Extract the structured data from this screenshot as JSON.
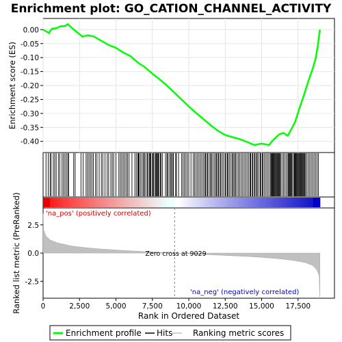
{
  "chart_data": {
    "type": "line",
    "title": "Enrichment plot: GO_CATION_CHANNEL_ACTIVITY",
    "panels": {
      "enrichment": {
        "ylabel": "Enrichment score (ES)",
        "ylim": [
          -0.44,
          0.04
        ],
        "yticks": [
          "0.00",
          "-0.05",
          "-0.10",
          "-0.15",
          "-0.20",
          "-0.25",
          "-0.30",
          "-0.35",
          "-0.40"
        ],
        "ytick_values": [
          0.0,
          -0.05,
          -0.1,
          -0.15,
          -0.2,
          -0.25,
          -0.3,
          -0.35,
          -0.4
        ],
        "series_color": "#00ff00",
        "points": [
          [
            0,
            0.0
          ],
          [
            400,
            -0.012
          ],
          [
            600,
            0.003
          ],
          [
            900,
            0.005
          ],
          [
            1200,
            0.012
          ],
          [
            1500,
            0.013
          ],
          [
            1700,
            0.02
          ],
          [
            2000,
            0.005
          ],
          [
            2300,
            -0.008
          ],
          [
            2700,
            -0.025
          ],
          [
            3100,
            -0.02
          ],
          [
            3500,
            -0.025
          ],
          [
            4000,
            -0.04
          ],
          [
            4500,
            -0.055
          ],
          [
            5000,
            -0.065
          ],
          [
            5500,
            -0.082
          ],
          [
            6000,
            -0.095
          ],
          [
            6500,
            -0.118
          ],
          [
            7000,
            -0.135
          ],
          [
            7500,
            -0.158
          ],
          [
            8000,
            -0.178
          ],
          [
            8500,
            -0.2
          ],
          [
            9000,
            -0.225
          ],
          [
            9500,
            -0.25
          ],
          [
            10000,
            -0.275
          ],
          [
            10500,
            -0.298
          ],
          [
            11000,
            -0.32
          ],
          [
            11500,
            -0.342
          ],
          [
            12000,
            -0.362
          ],
          [
            12500,
            -0.377
          ],
          [
            13000,
            -0.385
          ],
          [
            13500,
            -0.392
          ],
          [
            14000,
            -0.402
          ],
          [
            14500,
            -0.413
          ],
          [
            15000,
            -0.408
          ],
          [
            15500,
            -0.413
          ],
          [
            15800,
            -0.395
          ],
          [
            16200,
            -0.375
          ],
          [
            16500,
            -0.37
          ],
          [
            16800,
            -0.38
          ],
          [
            17000,
            -0.36
          ],
          [
            17300,
            -0.33
          ],
          [
            17600,
            -0.28
          ],
          [
            17900,
            -0.235
          ],
          [
            18200,
            -0.185
          ],
          [
            18500,
            -0.14
          ],
          [
            18700,
            -0.105
          ],
          [
            18850,
            -0.06
          ],
          [
            18950,
            -0.02
          ],
          [
            19000,
            0.0
          ]
        ]
      },
      "metric": {
        "ylabel": "Ranked list metric (PreRanked)",
        "yticks": [
          "2.5",
          "0.0",
          "-2.5"
        ],
        "ytick_values": [
          2.5,
          0.0,
          -2.5
        ],
        "ylim": [
          -4.0,
          4.0
        ],
        "points": [
          [
            0,
            3.5
          ],
          [
            50,
            2.0
          ],
          [
            200,
            1.5
          ],
          [
            500,
            1.15
          ],
          [
            1000,
            0.9
          ],
          [
            2000,
            0.62
          ],
          [
            3000,
            0.47
          ],
          [
            4000,
            0.36
          ],
          [
            5000,
            0.27
          ],
          [
            6000,
            0.2
          ],
          [
            7000,
            0.13
          ],
          [
            8000,
            0.06
          ],
          [
            9029,
            0.0
          ],
          [
            10000,
            -0.06
          ],
          [
            11000,
            -0.12
          ],
          [
            12000,
            -0.18
          ],
          [
            13000,
            -0.24
          ],
          [
            14000,
            -0.3
          ],
          [
            15000,
            -0.38
          ],
          [
            16000,
            -0.48
          ],
          [
            17000,
            -0.62
          ],
          [
            17500,
            -0.72
          ],
          [
            18000,
            -0.85
          ],
          [
            18500,
            -1.1
          ],
          [
            18800,
            -1.5
          ],
          [
            18950,
            -2.0
          ],
          [
            19000,
            -4.0
          ]
        ],
        "zero_cross_label": "Zero cross at 9029",
        "pos_label": "'na_pos' (positively correlated)",
        "neg_label": "'na_neg' (negatively correlated)"
      },
      "x": {
        "xlabel": "Rank in Ordered Dataset",
        "xlim": [
          0,
          20000
        ],
        "xticks": [
          "0",
          "2,500",
          "5,000",
          "7,500",
          "10,000",
          "12,500",
          "15,000",
          "17,500"
        ],
        "xtick_values": [
          0,
          2500,
          5000,
          7500,
          10000,
          12500,
          15000,
          17500
        ],
        "zero_cross": 9029,
        "max_rank": 19000
      },
      "hits": [
        200,
        350,
        480,
        550,
        700,
        800,
        900,
        1050,
        1150,
        1300,
        1400,
        1500,
        1600,
        1700,
        1750,
        2100,
        2200,
        2600,
        2750,
        2950,
        3050,
        3150,
        3250,
        3350,
        3450,
        3600,
        3700,
        3850,
        4000,
        4100,
        4250,
        4400,
        4500,
        4650,
        4750,
        4850,
        5000,
        5200,
        5300,
        5400,
        5500,
        5600,
        5700,
        5800,
        5900,
        6100,
        6300,
        6400,
        6500,
        6550,
        6600,
        6700,
        6800,
        6900,
        6950,
        7050,
        7150,
        7200,
        7300,
        7350,
        7400,
        7500,
        7550,
        7600,
        7700,
        7750,
        7800,
        7850,
        7900,
        7950,
        8050,
        8100,
        8200,
        8400,
        8500,
        8550,
        8650,
        8750,
        8800,
        8900,
        8950,
        9100,
        9150,
        9300,
        9500,
        9600,
        9700,
        9800,
        9900,
        10000,
        10150,
        10300,
        10400,
        10500,
        10600,
        10700,
        10800,
        10900,
        11000,
        11100,
        11150,
        11250,
        11300,
        11400,
        11500,
        11550,
        11650,
        11750,
        11850,
        11900,
        12000,
        12050,
        12150,
        12200,
        12300,
        12400,
        12500,
        12550,
        12650,
        12700,
        12800,
        12900,
        13000,
        13050,
        13150,
        13200,
        13300,
        13400,
        13500,
        13600,
        13700,
        13800,
        13900,
        14000,
        14100,
        14200,
        14250,
        14350,
        14400,
        14500,
        14550,
        14650,
        14700,
        14800,
        14900,
        14950,
        15050,
        15100,
        15200,
        15300,
        15400,
        15500,
        15600,
        15650,
        15700,
        15750,
        15800,
        15850,
        15900,
        15950,
        16000,
        16050,
        16100,
        16150,
        16200,
        16250,
        16300,
        16400,
        16500,
        16600,
        16700,
        16800,
        16850,
        16900,
        16950,
        17000,
        17050,
        17100,
        17200,
        17250,
        17300,
        17350,
        17400,
        17450,
        17500,
        17550,
        17600,
        17650,
        17700,
        17750,
        17800,
        17850,
        17900,
        17950,
        18000,
        18100,
        18200,
        18300,
        18400,
        18500,
        18600,
        18700,
        18800,
        18900
      ],
      "legend": [
        "Enrichment profile",
        "Hits",
        "Ranking metric scores"
      ],
      "colors": {
        "profile": "#00ff00",
        "hits": "#000000",
        "metric_fill": "#c0c0c0",
        "pos_label": "#cc0000",
        "neg_label": "#0000cc",
        "zero_line": "#808080"
      }
    }
  }
}
